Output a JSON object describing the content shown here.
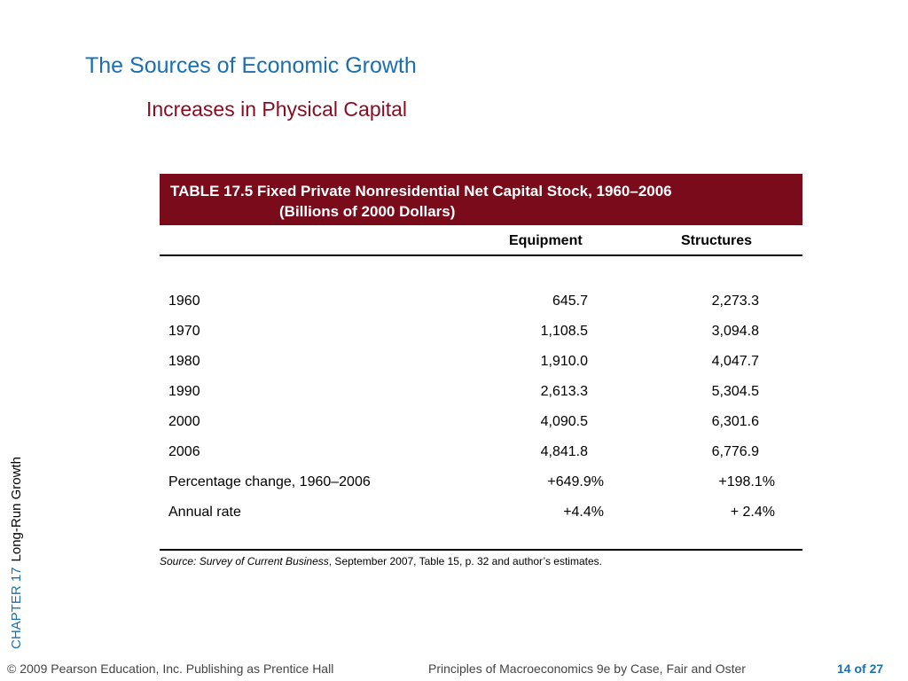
{
  "slide": {
    "title": "The Sources of Economic Growth",
    "subtitle": "Increases in Physical Capital"
  },
  "table": {
    "caption_line1": "TABLE 17.5  Fixed Private Nonresidential Net Capital Stock, 1960–2006",
    "caption_line2": "(Billions of 2000 Dollars)",
    "columns": [
      "Equipment",
      "Structures"
    ],
    "rows": [
      {
        "label": "1960",
        "equipment": "645.7",
        "structures": "2,273.3"
      },
      {
        "label": "1970",
        "equipment": "1,108.5",
        "structures": "3,094.8"
      },
      {
        "label": "1980",
        "equipment": "1,910.0",
        "structures": "4,047.7"
      },
      {
        "label": "1990",
        "equipment": "2,613.3",
        "structures": "5,304.5"
      },
      {
        "label": "2000",
        "equipment": "4,090.5",
        "structures": "6,301.6"
      },
      {
        "label": "2006",
        "equipment": "4,841.8",
        "structures": "6,776.9"
      },
      {
        "label": "Percentage change, 1960–2006",
        "equipment": "+649.9%",
        "structures": "+198.1%"
      },
      {
        "label": "Annual rate",
        "equipment": "+4.4%",
        "structures": "+ 2.4%"
      }
    ],
    "source_label": "Source: Survey of Current Business",
    "source_rest": ", September 2007, Table 15, p. 32 and author’s estimates."
  },
  "sidebar": {
    "chapter": "CHAPTER 17",
    "topic": "Long-Run Growth"
  },
  "footer": {
    "copyright": "© 2009 Pearson Education, Inc. Publishing as Prentice Hall",
    "book": "Principles of Macroeconomics 9e by Case, Fair and Oster",
    "page": "14 of 27"
  }
}
